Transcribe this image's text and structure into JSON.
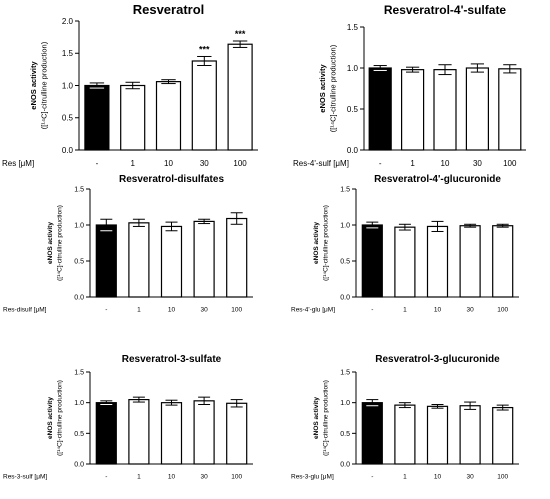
{
  "chart_data": [
    {
      "type": "bar",
      "title": "Resveratrol",
      "ylabel_line1": "eNOS activity",
      "ylabel_line2": "([¹⁴C]-citrulline production)",
      "xlabel": "Res [μM]",
      "categories": [
        "-",
        "1",
        "10",
        "30",
        "100"
      ],
      "values": [
        1.0,
        1.0,
        1.06,
        1.38,
        1.64
      ],
      "errors": [
        0.04,
        0.05,
        0.03,
        0.07,
        0.05
      ],
      "fill": [
        "#000000",
        "#ffffff",
        "#ffffff",
        "#ffffff",
        "#ffffff"
      ],
      "annotations": [
        "",
        "",
        "",
        "***",
        "***"
      ],
      "ylim": [
        0,
        2.0
      ],
      "yticks": [
        "0.0",
        "0.5",
        "1.0",
        "1.5",
        "2.0"
      ]
    },
    {
      "type": "bar",
      "title": "Resveratrol-4'-sulfate",
      "ylabel_line1": "eNOS activity",
      "ylabel_line2": "([¹⁴C]-citrulline production)",
      "xlabel": "Res-4'-sulf [μM]",
      "categories": [
        "-",
        "1",
        "10",
        "30",
        "100"
      ],
      "values": [
        1.0,
        0.98,
        0.98,
        1.0,
        0.99
      ],
      "errors": [
        0.03,
        0.03,
        0.06,
        0.05,
        0.05
      ],
      "fill": [
        "#000000",
        "#ffffff",
        "#ffffff",
        "#ffffff",
        "#ffffff"
      ],
      "annotations": [
        "",
        "",
        "",
        "",
        ""
      ],
      "ylim": [
        0,
        1.5
      ],
      "yticks": [
        "0.0",
        "0.5",
        "1.0",
        "1.5"
      ]
    },
    {
      "type": "bar",
      "title": "Resveratrol-disulfates",
      "ylabel_line1": "eNOS activity",
      "ylabel_line2": "([¹⁴C]-citrulline production)",
      "xlabel": "Res-disulf [μM]",
      "categories": [
        "-",
        "1",
        "10",
        "30",
        "100"
      ],
      "values": [
        1.0,
        1.03,
        0.98,
        1.05,
        1.09
      ],
      "errors": [
        0.08,
        0.05,
        0.06,
        0.03,
        0.08
      ],
      "fill": [
        "#000000",
        "#ffffff",
        "#ffffff",
        "#ffffff",
        "#ffffff"
      ],
      "annotations": [
        "",
        "",
        "",
        "",
        ""
      ],
      "ylim": [
        0,
        1.5
      ],
      "yticks": [
        "0.0",
        "0.5",
        "1.0",
        "1.5"
      ]
    },
    {
      "type": "bar",
      "title": "Resveratrol-4'-glucuronide",
      "ylabel_line1": "eNOS activity",
      "ylabel_line2": "([¹⁴C]-citrulline production)",
      "xlabel": "Res-4'-glu [μM]",
      "categories": [
        "-",
        "1",
        "10",
        "30",
        "100"
      ],
      "values": [
        1.0,
        0.97,
        0.98,
        0.99,
        0.99
      ],
      "errors": [
        0.04,
        0.04,
        0.07,
        0.02,
        0.02
      ],
      "fill": [
        "#000000",
        "#ffffff",
        "#ffffff",
        "#ffffff",
        "#ffffff"
      ],
      "annotations": [
        "",
        "",
        "",
        "",
        ""
      ],
      "ylim": [
        0,
        1.5
      ],
      "yticks": [
        "0.0",
        "0.5",
        "1.0",
        "1.5"
      ]
    },
    {
      "type": "bar",
      "title": "Resveratrol-3-sulfate",
      "ylabel_line1": "eNOS activity",
      "ylabel_line2": "([¹⁴C]-citrulline production)",
      "xlabel": "Res-3-sulf [μM]",
      "categories": [
        "-",
        "1",
        "10",
        "30",
        "100"
      ],
      "values": [
        1.0,
        1.05,
        1.0,
        1.03,
        0.99
      ],
      "errors": [
        0.03,
        0.04,
        0.04,
        0.06,
        0.06
      ],
      "fill": [
        "#000000",
        "#ffffff",
        "#ffffff",
        "#ffffff",
        "#ffffff"
      ],
      "annotations": [
        "",
        "",
        "",
        "",
        ""
      ],
      "ylim": [
        0,
        1.5
      ],
      "yticks": [
        "0.0",
        "0.5",
        "1.0",
        "1.5"
      ]
    },
    {
      "type": "bar",
      "title": "Resveratrol-3-glucuronide",
      "ylabel_line1": "eNOS activity",
      "ylabel_line2": "([¹⁴C]-citrulline production)",
      "xlabel": "Res-3-glu [μM]",
      "categories": [
        "-",
        "1",
        "10",
        "30",
        "100"
      ],
      "values": [
        1.0,
        0.96,
        0.94,
        0.95,
        0.92
      ],
      "errors": [
        0.05,
        0.04,
        0.03,
        0.06,
        0.04
      ],
      "fill": [
        "#000000",
        "#ffffff",
        "#ffffff",
        "#ffffff",
        "#ffffff"
      ],
      "annotations": [
        "",
        "",
        "",
        "",
        ""
      ],
      "ylim": [
        0,
        1.5
      ],
      "yticks": [
        "0.0",
        "0.5",
        "1.0",
        "1.5"
      ]
    }
  ]
}
